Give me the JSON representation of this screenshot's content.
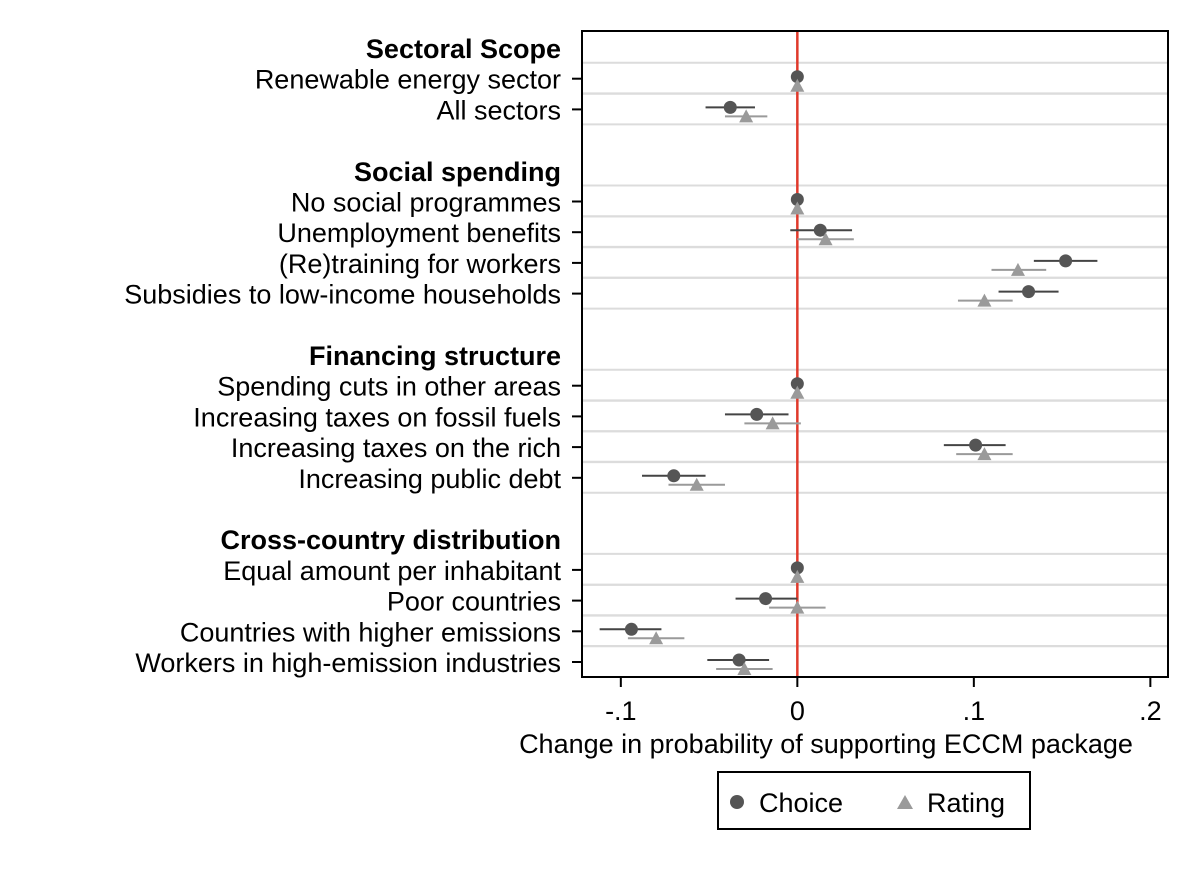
{
  "chart_data": {
    "type": "scatter",
    "xlabel": "Change in probability of supporting ECCM package",
    "xlim": [
      -0.122,
      0.21
    ],
    "xticks": [
      {
        "value": -0.1,
        "label": "-.1"
      },
      {
        "value": 0,
        "label": "0"
      },
      {
        "value": 0.1,
        "label": ".1"
      },
      {
        "value": 0.2,
        "label": ".2"
      }
    ],
    "reference_line": {
      "x": 0,
      "color": "#e0392b"
    },
    "grid": true,
    "legend_position": "bottom",
    "colors": {
      "choice": "#555555",
      "rating": "#9a9a9a",
      "frame": "#000000",
      "grid": "#dcdcdc"
    },
    "series": [
      {
        "name": "Choice",
        "marker": "circle",
        "color": "#555555"
      },
      {
        "name": "Rating",
        "marker": "triangle",
        "color": "#9a9a9a"
      }
    ],
    "groups": [
      {
        "label": "Sectoral Scope",
        "items": [
          {
            "label": "Renewable energy sector",
            "choice": {
              "est": 0,
              "lo": 0,
              "hi": 0
            },
            "rating": {
              "est": 0,
              "lo": 0,
              "hi": 0
            }
          },
          {
            "label": "All sectors",
            "choice": {
              "est": -0.038,
              "lo": -0.052,
              "hi": -0.024
            },
            "rating": {
              "est": -0.029,
              "lo": -0.041,
              "hi": -0.017
            }
          }
        ]
      },
      {
        "label": "Social spending",
        "items": [
          {
            "label": "No social programmes",
            "choice": {
              "est": 0,
              "lo": 0,
              "hi": 0
            },
            "rating": {
              "est": 0,
              "lo": 0,
              "hi": 0
            }
          },
          {
            "label": "Unemployment benefits",
            "choice": {
              "est": 0.013,
              "lo": -0.004,
              "hi": 0.031
            },
            "rating": {
              "est": 0.016,
              "lo": 0.0,
              "hi": 0.032
            }
          },
          {
            "label": "(Re)training for workers",
            "choice": {
              "est": 0.152,
              "lo": 0.134,
              "hi": 0.17
            },
            "rating": {
              "est": 0.125,
              "lo": 0.11,
              "hi": 0.141
            }
          },
          {
            "label": "Subsidies to low-income households",
            "choice": {
              "est": 0.131,
              "lo": 0.114,
              "hi": 0.148
            },
            "rating": {
              "est": 0.106,
              "lo": 0.091,
              "hi": 0.122
            }
          }
        ]
      },
      {
        "label": "Financing structure",
        "items": [
          {
            "label": "Spending cuts in other areas",
            "choice": {
              "est": 0,
              "lo": 0,
              "hi": 0
            },
            "rating": {
              "est": 0,
              "lo": 0,
              "hi": 0
            }
          },
          {
            "label": "Increasing taxes on fossil fuels",
            "choice": {
              "est": -0.023,
              "lo": -0.041,
              "hi": -0.005
            },
            "rating": {
              "est": -0.014,
              "lo": -0.03,
              "hi": 0.002
            }
          },
          {
            "label": "Increasing taxes on the rich",
            "choice": {
              "est": 0.101,
              "lo": 0.083,
              "hi": 0.118
            },
            "rating": {
              "est": 0.106,
              "lo": 0.09,
              "hi": 0.122
            }
          },
          {
            "label": "Increasing public debt",
            "choice": {
              "est": -0.07,
              "lo": -0.088,
              "hi": -0.052
            },
            "rating": {
              "est": -0.057,
              "lo": -0.073,
              "hi": -0.041
            }
          }
        ]
      },
      {
        "label": "Cross-country distribution",
        "items": [
          {
            "label": "Equal amount per inhabitant",
            "choice": {
              "est": 0,
              "lo": 0,
              "hi": 0
            },
            "rating": {
              "est": 0,
              "lo": 0,
              "hi": 0
            }
          },
          {
            "label": "Poor countries",
            "choice": {
              "est": -0.018,
              "lo": -0.035,
              "hi": 0.0
            },
            "rating": {
              "est": 0,
              "lo": -0.016,
              "hi": 0.016
            }
          },
          {
            "label": "Countries with higher emissions",
            "choice": {
              "est": -0.094,
              "lo": -0.112,
              "hi": -0.077
            },
            "rating": {
              "est": -0.08,
              "lo": -0.096,
              "hi": -0.064
            }
          },
          {
            "label": "Workers in high-emission industries",
            "choice": {
              "est": -0.033,
              "lo": -0.051,
              "hi": -0.016
            },
            "rating": {
              "est": -0.03,
              "lo": -0.046,
              "hi": -0.014
            }
          }
        ]
      }
    ]
  }
}
